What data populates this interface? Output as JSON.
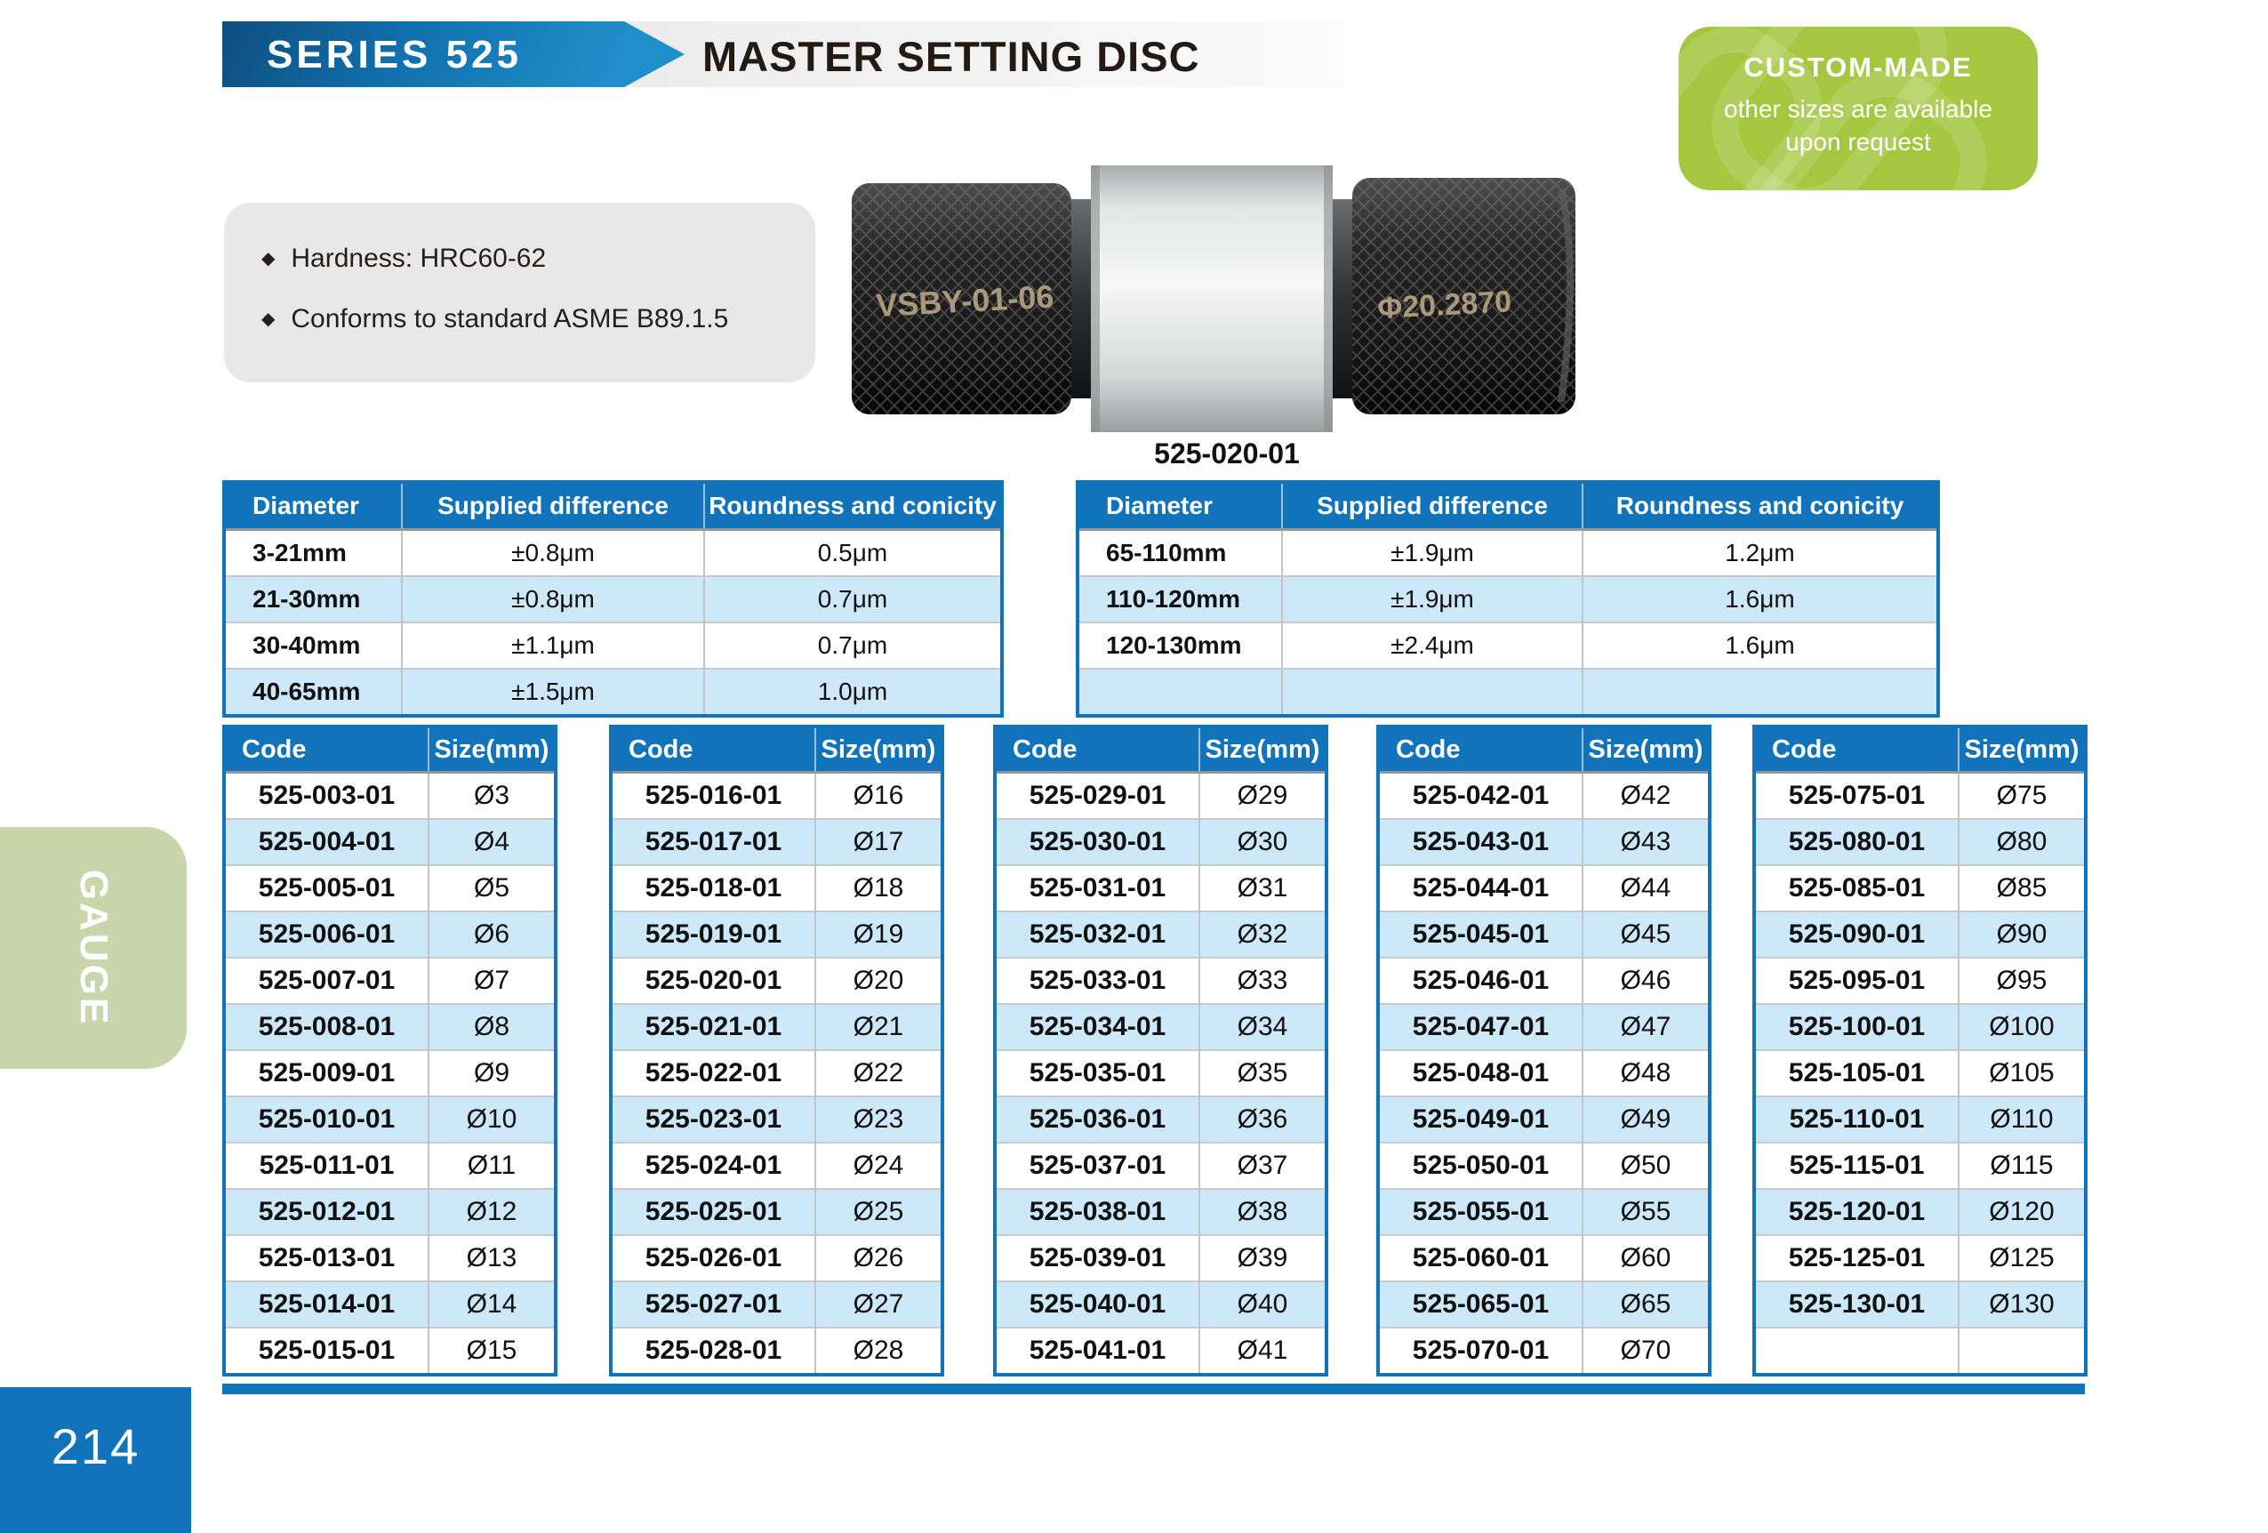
{
  "page": {
    "series_label": "SERIES 525",
    "title": "MASTER SETTING DISC",
    "side_tab_label": "GAUGE",
    "page_number": "214"
  },
  "custom_badge": {
    "title": "CUSTOM-MADE",
    "subtitle_line1": "other sizes are available",
    "subtitle_line2": "upon request"
  },
  "features": {
    "bullet": "◆",
    "items": [
      "Hardness: HRC60-62",
      "Conforms to standard ASME B89.1.5"
    ]
  },
  "product": {
    "left_marking": "VSBY-01-06",
    "right_marking": "Φ20.2870",
    "caption": "525-020-01"
  },
  "spec_tables": [
    {
      "headers": [
        "Diameter",
        "Supplied difference",
        "Roundness and conicity"
      ],
      "rows": [
        [
          "3-21mm",
          "±0.8μm",
          "0.5μm"
        ],
        [
          "21-30mm",
          "±0.8μm",
          "0.7μm"
        ],
        [
          "30-40mm",
          "±1.1μm",
          "0.7μm"
        ],
        [
          "40-65mm",
          "±1.5μm",
          "1.0μm"
        ]
      ]
    },
    {
      "headers": [
        "Diameter",
        "Supplied difference",
        "Roundness and conicity"
      ],
      "rows": [
        [
          "65-110mm",
          "±1.9μm",
          "1.2μm"
        ],
        [
          "110-120mm",
          "±1.9μm",
          "1.6μm"
        ],
        [
          "120-130mm",
          "±2.4μm",
          "1.6μm"
        ],
        [
          "",
          "",
          ""
        ]
      ]
    }
  ],
  "code_tables": [
    {
      "headers": [
        "Code",
        "Size(mm)"
      ],
      "rows": [
        [
          "525-003-01",
          "Ø3"
        ],
        [
          "525-004-01",
          "Ø4"
        ],
        [
          "525-005-01",
          "Ø5"
        ],
        [
          "525-006-01",
          "Ø6"
        ],
        [
          "525-007-01",
          "Ø7"
        ],
        [
          "525-008-01",
          "Ø8"
        ],
        [
          "525-009-01",
          "Ø9"
        ],
        [
          "525-010-01",
          "Ø10"
        ],
        [
          "525-011-01",
          "Ø11"
        ],
        [
          "525-012-01",
          "Ø12"
        ],
        [
          "525-013-01",
          "Ø13"
        ],
        [
          "525-014-01",
          "Ø14"
        ],
        [
          "525-015-01",
          "Ø15"
        ]
      ]
    },
    {
      "headers": [
        "Code",
        "Size(mm)"
      ],
      "rows": [
        [
          "525-016-01",
          "Ø16"
        ],
        [
          "525-017-01",
          "Ø17"
        ],
        [
          "525-018-01",
          "Ø18"
        ],
        [
          "525-019-01",
          "Ø19"
        ],
        [
          "525-020-01",
          "Ø20"
        ],
        [
          "525-021-01",
          "Ø21"
        ],
        [
          "525-022-01",
          "Ø22"
        ],
        [
          "525-023-01",
          "Ø23"
        ],
        [
          "525-024-01",
          "Ø24"
        ],
        [
          "525-025-01",
          "Ø25"
        ],
        [
          "525-026-01",
          "Ø26"
        ],
        [
          "525-027-01",
          "Ø27"
        ],
        [
          "525-028-01",
          "Ø28"
        ]
      ]
    },
    {
      "headers": [
        "Code",
        "Size(mm)"
      ],
      "rows": [
        [
          "525-029-01",
          "Ø29"
        ],
        [
          "525-030-01",
          "Ø30"
        ],
        [
          "525-031-01",
          "Ø31"
        ],
        [
          "525-032-01",
          "Ø32"
        ],
        [
          "525-033-01",
          "Ø33"
        ],
        [
          "525-034-01",
          "Ø34"
        ],
        [
          "525-035-01",
          "Ø35"
        ],
        [
          "525-036-01",
          "Ø36"
        ],
        [
          "525-037-01",
          "Ø37"
        ],
        [
          "525-038-01",
          "Ø38"
        ],
        [
          "525-039-01",
          "Ø39"
        ],
        [
          "525-040-01",
          "Ø40"
        ],
        [
          "525-041-01",
          "Ø41"
        ]
      ]
    },
    {
      "headers": [
        "Code",
        "Size(mm)"
      ],
      "rows": [
        [
          "525-042-01",
          "Ø42"
        ],
        [
          "525-043-01",
          "Ø43"
        ],
        [
          "525-044-01",
          "Ø44"
        ],
        [
          "525-045-01",
          "Ø45"
        ],
        [
          "525-046-01",
          "Ø46"
        ],
        [
          "525-047-01",
          "Ø47"
        ],
        [
          "525-048-01",
          "Ø48"
        ],
        [
          "525-049-01",
          "Ø49"
        ],
        [
          "525-050-01",
          "Ø50"
        ],
        [
          "525-055-01",
          "Ø55"
        ],
        [
          "525-060-01",
          "Ø60"
        ],
        [
          "525-065-01",
          "Ø65"
        ],
        [
          "525-070-01",
          "Ø70"
        ]
      ]
    },
    {
      "headers": [
        "Code",
        "Size(mm)"
      ],
      "rows": [
        [
          "525-075-01",
          "Ø75"
        ],
        [
          "525-080-01",
          "Ø80"
        ],
        [
          "525-085-01",
          "Ø85"
        ],
        [
          "525-090-01",
          "Ø90"
        ],
        [
          "525-095-01",
          "Ø95"
        ],
        [
          "525-100-01",
          "Ø100"
        ],
        [
          "525-105-01",
          "Ø105"
        ],
        [
          "525-110-01",
          "Ø110"
        ],
        [
          "525-115-01",
          "Ø115"
        ],
        [
          "525-120-01",
          "Ø120"
        ],
        [
          "525-125-01",
          "Ø125"
        ],
        [
          "525-130-01",
          "Ø130"
        ],
        [
          "",
          ""
        ]
      ]
    }
  ],
  "colors": {
    "accent_blue": "#1173b9",
    "row_alt_blue": "#cde8f8",
    "badge_green": "#a4c73f",
    "tab_green": "#c9d6ab",
    "title_dark": "#241a14"
  }
}
